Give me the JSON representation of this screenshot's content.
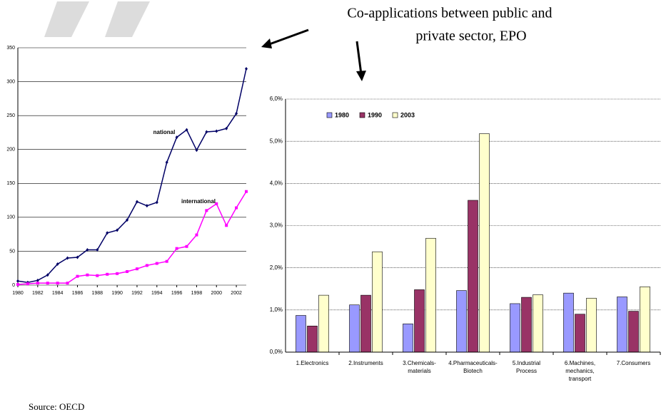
{
  "annotation": [
    "Co-applications between public and",
    "private sector, EPO"
  ],
  "source": "Source: OECD",
  "chart_data": [
    {
      "type": "line",
      "x": [
        1980,
        1981,
        1982,
        1983,
        1984,
        1985,
        1986,
        1987,
        1988,
        1989,
        1990,
        1991,
        1992,
        1993,
        1994,
        1995,
        1996,
        1997,
        1998,
        1999,
        2000,
        2001,
        2002,
        2003
      ],
      "series": [
        {
          "name": "national",
          "color": "#000066",
          "values": [
            6,
            4,
            7,
            15,
            31,
            40,
            41,
            52,
            52,
            77,
            81,
            96,
            123,
            117,
            122,
            181,
            218,
            229,
            199,
            226,
            227,
            231,
            253,
            319
          ]
        },
        {
          "name": "international",
          "color": "#ff00ff",
          "values": [
            1,
            2,
            3,
            3,
            3,
            3,
            13,
            15,
            14,
            16,
            17,
            20,
            24,
            29,
            32,
            35,
            54,
            57,
            74,
            110,
            120,
            88,
            114,
            138
          ]
        }
      ],
      "xlim": [
        1980,
        2003
      ],
      "xticks": [
        1980,
        1982,
        1984,
        1986,
        1988,
        1990,
        1992,
        1994,
        1996,
        1998,
        2000,
        2002
      ],
      "ylim": [
        0,
        350
      ],
      "yticks": [
        0,
        50,
        100,
        150,
        200,
        250,
        300,
        350
      ],
      "grid": true
    },
    {
      "type": "bar",
      "categories": [
        "1.Electronics",
        "2.Instruments",
        "3.Chemicals-materials",
        "4.Pharmaceuticals-Biotech",
        "5.Industrial Process",
        "6.Machines, mechanics, transport",
        "7.Consumers"
      ],
      "series": [
        {
          "name": "1980",
          "color": "#9999ff",
          "values": [
            0.87,
            1.12,
            0.67,
            1.46,
            1.15,
            1.4,
            1.31
          ]
        },
        {
          "name": "1990",
          "color": "#993366",
          "values": [
            0.62,
            1.35,
            1.48,
            3.6,
            1.3,
            0.9,
            0.97
          ]
        },
        {
          "name": "2003",
          "color": "#ffffcc",
          "values": [
            1.35,
            2.38,
            2.7,
            5.18,
            1.36,
            1.28,
            1.55
          ]
        }
      ],
      "ylim": [
        0,
        6
      ],
      "yticks": [
        {
          "value": 0,
          "label": "0,0%"
        },
        {
          "value": 1,
          "label": "1,0%"
        },
        {
          "value": 2,
          "label": "2,0%"
        },
        {
          "value": 3,
          "label": "3,0%"
        },
        {
          "value": 4,
          "label": "4,0%"
        },
        {
          "value": 5,
          "label": "5,0%"
        },
        {
          "value": 6,
          "label": "6,0%"
        }
      ],
      "grid": true,
      "legend": "top-left"
    }
  ]
}
